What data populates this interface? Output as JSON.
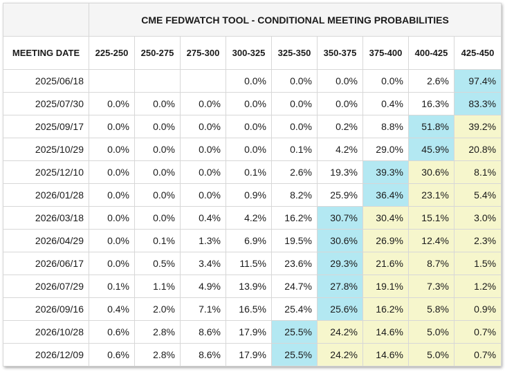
{
  "title": "CME FEDWATCH TOOL - CONDITIONAL MEETING PROBABILITIES",
  "date_header": "MEETING DATE",
  "colors": {
    "highlight_max": "#b3e8f2",
    "highlight_tail": "#f6f6cc"
  },
  "columns": [
    "225-250",
    "250-275",
    "275-300",
    "300-325",
    "325-350",
    "350-375",
    "375-400",
    "400-425",
    "425-450"
  ],
  "rows": [
    {
      "date": "2025/06/18",
      "values": [
        "",
        "",
        "",
        "0.0%",
        "0.0%",
        "0.0%",
        "0.0%",
        "2.6%",
        "97.4%"
      ],
      "shade": [
        "",
        "",
        "",
        "",
        "",
        "",
        "",
        "",
        "b"
      ]
    },
    {
      "date": "2025/07/30",
      "values": [
        "0.0%",
        "0.0%",
        "0.0%",
        "0.0%",
        "0.0%",
        "0.0%",
        "0.4%",
        "16.3%",
        "83.3%"
      ],
      "shade": [
        "",
        "",
        "",
        "",
        "",
        "",
        "",
        "",
        "b"
      ]
    },
    {
      "date": "2025/09/17",
      "values": [
        "0.0%",
        "0.0%",
        "0.0%",
        "0.0%",
        "0.0%",
        "0.2%",
        "8.8%",
        "51.8%",
        "39.2%"
      ],
      "shade": [
        "",
        "",
        "",
        "",
        "",
        "",
        "",
        "b",
        "y"
      ]
    },
    {
      "date": "2025/10/29",
      "values": [
        "0.0%",
        "0.0%",
        "0.0%",
        "0.0%",
        "0.1%",
        "4.2%",
        "29.0%",
        "45.9%",
        "20.8%"
      ],
      "shade": [
        "",
        "",
        "",
        "",
        "",
        "",
        "",
        "b",
        "y"
      ]
    },
    {
      "date": "2025/12/10",
      "values": [
        "0.0%",
        "0.0%",
        "0.0%",
        "0.1%",
        "2.6%",
        "19.3%",
        "39.3%",
        "30.6%",
        "8.1%"
      ],
      "shade": [
        "",
        "",
        "",
        "",
        "",
        "",
        "b",
        "y",
        "y"
      ]
    },
    {
      "date": "2026/01/28",
      "values": [
        "0.0%",
        "0.0%",
        "0.0%",
        "0.9%",
        "8.2%",
        "25.9%",
        "36.4%",
        "23.1%",
        "5.4%"
      ],
      "shade": [
        "",
        "",
        "",
        "",
        "",
        "",
        "b",
        "y",
        "y"
      ]
    },
    {
      "date": "2026/03/18",
      "values": [
        "0.0%",
        "0.0%",
        "0.4%",
        "4.2%",
        "16.2%",
        "30.7%",
        "30.4%",
        "15.1%",
        "3.0%"
      ],
      "shade": [
        "",
        "",
        "",
        "",
        "",
        "b",
        "y",
        "y",
        "y"
      ]
    },
    {
      "date": "2026/04/29",
      "values": [
        "0.0%",
        "0.1%",
        "1.3%",
        "6.9%",
        "19.5%",
        "30.6%",
        "26.9%",
        "12.4%",
        "2.3%"
      ],
      "shade": [
        "",
        "",
        "",
        "",
        "",
        "b",
        "y",
        "y",
        "y"
      ]
    },
    {
      "date": "2026/06/17",
      "values": [
        "0.0%",
        "0.5%",
        "3.4%",
        "11.5%",
        "23.6%",
        "29.3%",
        "21.6%",
        "8.7%",
        "1.5%"
      ],
      "shade": [
        "",
        "",
        "",
        "",
        "",
        "b",
        "y",
        "y",
        "y"
      ]
    },
    {
      "date": "2026/07/29",
      "values": [
        "0.1%",
        "1.1%",
        "4.9%",
        "13.9%",
        "24.7%",
        "27.8%",
        "19.1%",
        "7.3%",
        "1.2%"
      ],
      "shade": [
        "",
        "",
        "",
        "",
        "",
        "b",
        "y",
        "y",
        "y"
      ]
    },
    {
      "date": "2026/09/16",
      "values": [
        "0.4%",
        "2.0%",
        "7.1%",
        "16.5%",
        "25.4%",
        "25.6%",
        "16.2%",
        "5.8%",
        "0.9%"
      ],
      "shade": [
        "",
        "",
        "",
        "",
        "",
        "b",
        "y",
        "y",
        "y"
      ]
    },
    {
      "date": "2026/10/28",
      "values": [
        "0.6%",
        "2.8%",
        "8.6%",
        "17.9%",
        "25.5%",
        "24.2%",
        "14.6%",
        "5.0%",
        "0.7%"
      ],
      "shade": [
        "",
        "",
        "",
        "",
        "b",
        "y",
        "y",
        "y",
        "y"
      ]
    },
    {
      "date": "2026/12/09",
      "values": [
        "0.6%",
        "2.8%",
        "8.6%",
        "17.9%",
        "25.5%",
        "24.2%",
        "14.6%",
        "5.0%",
        "0.7%"
      ],
      "shade": [
        "",
        "",
        "",
        "",
        "b",
        "y",
        "y",
        "y",
        "y"
      ]
    }
  ]
}
